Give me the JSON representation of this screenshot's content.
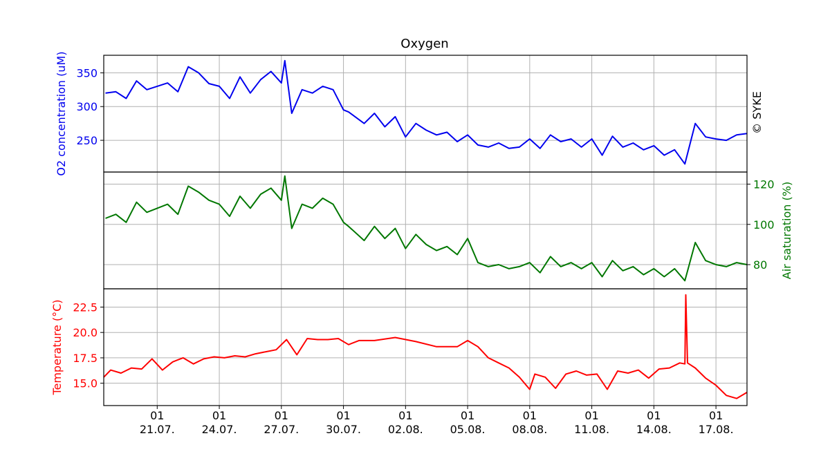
{
  "title": "Oxygen",
  "copyright": "© SYKE",
  "colors": {
    "o2": "#0000ee",
    "sat": "#007700",
    "temp": "#ff0000",
    "grid": "#b0b0b0",
    "axis": "#000000"
  },
  "chart_data": [
    {
      "type": "line",
      "panel": "o2",
      "ylabel": "O2 concentration (uM)",
      "ylim": [
        203,
        376
      ],
      "y_ticks": [
        "250",
        "300",
        "350"
      ],
      "x_tick_top": [
        "01",
        "01",
        "01",
        "01",
        "01",
        "01",
        "01",
        "01",
        "01",
        "01"
      ],
      "x_tick_bottom": [
        "21.07.",
        "24.07.",
        "27.07.",
        "30.07.",
        "02.08.",
        "05.08.",
        "08.08.",
        "11.08.",
        "14.08.",
        "17.08."
      ],
      "x_range": [
        "2025-07-18 10:00",
        "2025-08-18 12:00"
      ],
      "grid": true,
      "series": [
        {
          "x": [
            "2025-07-18 12:00",
            "2025-07-19 00:00",
            "2025-07-19 12:00",
            "2025-07-20 00:00",
            "2025-07-20 12:00",
            "2025-07-21 00:00",
            "2025-07-21 12:00",
            "2025-07-22 00:00",
            "2025-07-22 12:00",
            "2025-07-23 00:00",
            "2025-07-23 12:00",
            "2025-07-24 00:00",
            "2025-07-24 12:00",
            "2025-07-25 00:00",
            "2025-07-25 12:00",
            "2025-07-26 00:00",
            "2025-07-26 12:00",
            "2025-07-27 00:00",
            "2025-07-27 04:00",
            "2025-07-27 12:00",
            "2025-07-28 00:00",
            "2025-07-28 12:00",
            "2025-07-29 00:00",
            "2025-07-29 12:00",
            "2025-07-30 00:00",
            "2025-07-30 06:00",
            "2025-07-31 00:00",
            "2025-07-31 12:00",
            "2025-08-01 00:00",
            "2025-08-01 12:00",
            "2025-08-02 00:00",
            "2025-08-02 12:00",
            "2025-08-03 00:00",
            "2025-08-03 12:00",
            "2025-08-04 00:00",
            "2025-08-04 12:00",
            "2025-08-05 00:00",
            "2025-08-05 12:00",
            "2025-08-06 00:00",
            "2025-08-06 12:00",
            "2025-08-07 00:00",
            "2025-08-07 12:00",
            "2025-08-08 00:00",
            "2025-08-08 12:00",
            "2025-08-09 00:00",
            "2025-08-09 12:00",
            "2025-08-10 00:00",
            "2025-08-10 12:00",
            "2025-08-11 00:00",
            "2025-08-11 12:00",
            "2025-08-12 00:00",
            "2025-08-12 12:00",
            "2025-08-13 00:00",
            "2025-08-13 12:00",
            "2025-08-14 00:00",
            "2025-08-14 12:00",
            "2025-08-15 00:00",
            "2025-08-15 12:00",
            "2025-08-16 00:00",
            "2025-08-16 12:00",
            "2025-08-17 00:00",
            "2025-08-17 12:00",
            "2025-08-18 00:00",
            "2025-08-18 12:00"
          ],
          "y": [
            320,
            322,
            312,
            338,
            325,
            330,
            335,
            322,
            359,
            350,
            334,
            330,
            312,
            344,
            320,
            340,
            352,
            335,
            368,
            290,
            325,
            320,
            330,
            325,
            295,
            292,
            275,
            290,
            270,
            285,
            255,
            275,
            265,
            258,
            262,
            248,
            258,
            243,
            240,
            246,
            238,
            240,
            252,
            238,
            258,
            248,
            252,
            240,
            252,
            228,
            256,
            240,
            246,
            236,
            242,
            228,
            236,
            215,
            275,
            255,
            252,
            250,
            258,
            260
          ]
        }
      ]
    },
    {
      "type": "line",
      "panel": "saturation",
      "ylabel": "Air saturation (%)",
      "ylim": [
        68,
        126
      ],
      "y_ticks": [
        "80",
        "100",
        "120"
      ],
      "grid": true,
      "series": [
        {
          "x": [
            "2025-07-18 12:00",
            "2025-07-19 00:00",
            "2025-07-19 12:00",
            "2025-07-20 00:00",
            "2025-07-20 12:00",
            "2025-07-21 00:00",
            "2025-07-21 12:00",
            "2025-07-22 00:00",
            "2025-07-22 12:00",
            "2025-07-23 00:00",
            "2025-07-23 12:00",
            "2025-07-24 00:00",
            "2025-07-24 12:00",
            "2025-07-25 00:00",
            "2025-07-25 12:00",
            "2025-07-26 00:00",
            "2025-07-26 12:00",
            "2025-07-27 00:00",
            "2025-07-27 04:00",
            "2025-07-27 12:00",
            "2025-07-28 00:00",
            "2025-07-28 12:00",
            "2025-07-29 00:00",
            "2025-07-29 12:00",
            "2025-07-30 00:00",
            "2025-07-30 06:00",
            "2025-07-31 00:00",
            "2025-07-31 12:00",
            "2025-08-01 00:00",
            "2025-08-01 12:00",
            "2025-08-02 00:00",
            "2025-08-02 12:00",
            "2025-08-03 00:00",
            "2025-08-03 12:00",
            "2025-08-04 00:00",
            "2025-08-04 12:00",
            "2025-08-05 00:00",
            "2025-08-05 12:00",
            "2025-08-06 00:00",
            "2025-08-06 12:00",
            "2025-08-07 00:00",
            "2025-08-07 12:00",
            "2025-08-08 00:00",
            "2025-08-08 12:00",
            "2025-08-09 00:00",
            "2025-08-09 12:00",
            "2025-08-10 00:00",
            "2025-08-10 12:00",
            "2025-08-11 00:00",
            "2025-08-11 12:00",
            "2025-08-12 00:00",
            "2025-08-12 12:00",
            "2025-08-13 00:00",
            "2025-08-13 12:00",
            "2025-08-14 00:00",
            "2025-08-14 12:00",
            "2025-08-15 00:00",
            "2025-08-15 12:00",
            "2025-08-16 00:00",
            "2025-08-16 12:00",
            "2025-08-17 00:00",
            "2025-08-17 12:00",
            "2025-08-18 00:00",
            "2025-08-18 12:00"
          ],
          "y": [
            103,
            105,
            101,
            111,
            106,
            108,
            110,
            105,
            119,
            116,
            112,
            110,
            104,
            114,
            108,
            115,
            118,
            112,
            124,
            98,
            110,
            108,
            113,
            110,
            101,
            99,
            92,
            99,
            93,
            98,
            88,
            95,
            90,
            87,
            89,
            85,
            93,
            81,
            79,
            80,
            78,
            79,
            81,
            76,
            84,
            79,
            81,
            78,
            81,
            74,
            82,
            77,
            79,
            75,
            78,
            74,
            78,
            72,
            91,
            82,
            80,
            79,
            81,
            80
          ]
        }
      ]
    },
    {
      "type": "line",
      "panel": "temperature",
      "ylabel": "Temperature (°C)",
      "ylim": [
        12.8,
        24.3
      ],
      "y_ticks": [
        "15.0",
        "17.5",
        "20.0",
        "22.5"
      ],
      "grid": true,
      "series": [
        {
          "x": [
            "2025-07-18 10:00",
            "2025-07-18 18:00",
            "2025-07-19 06:00",
            "2025-07-19 18:00",
            "2025-07-20 06:00",
            "2025-07-20 18:00",
            "2025-07-21 06:00",
            "2025-07-21 18:00",
            "2025-07-22 06:00",
            "2025-07-22 18:00",
            "2025-07-23 06:00",
            "2025-07-23 18:00",
            "2025-07-24 06:00",
            "2025-07-24 18:00",
            "2025-07-25 06:00",
            "2025-07-25 18:00",
            "2025-07-26 06:00",
            "2025-07-26 18:00",
            "2025-07-27 06:00",
            "2025-07-27 18:00",
            "2025-07-28 06:00",
            "2025-07-28 18:00",
            "2025-07-29 06:00",
            "2025-07-29 18:00",
            "2025-07-30 06:00",
            "2025-07-30 18:00",
            "2025-07-31 12:00",
            "2025-08-01 12:00",
            "2025-08-02 12:00",
            "2025-08-03 12:00",
            "2025-08-04 12:00",
            "2025-08-05 00:00",
            "2025-08-05 12:00",
            "2025-08-06 00:00",
            "2025-08-06 12:00",
            "2025-08-07 00:00",
            "2025-08-07 12:00",
            "2025-08-08 00:00",
            "2025-08-08 06:00",
            "2025-08-08 18:00",
            "2025-08-09 06:00",
            "2025-08-09 18:00",
            "2025-08-10 06:00",
            "2025-08-10 18:00",
            "2025-08-11 06:00",
            "2025-08-11 18:00",
            "2025-08-12 06:00",
            "2025-08-12 18:00",
            "2025-08-13 06:00",
            "2025-08-13 18:00",
            "2025-08-14 06:00",
            "2025-08-14 18:00",
            "2025-08-15 06:00",
            "2025-08-15 12:00",
            "2025-08-15 13:00",
            "2025-08-15 15:00",
            "2025-08-16 00:00",
            "2025-08-16 12:00",
            "2025-08-17 00:00",
            "2025-08-17 12:00",
            "2025-08-18 00:00",
            "2025-08-18 12:00"
          ],
          "y": [
            15.6,
            16.3,
            16.0,
            16.5,
            16.4,
            17.4,
            16.3,
            17.1,
            17.5,
            16.9,
            17.4,
            17.6,
            17.5,
            17.7,
            17.6,
            17.9,
            18.1,
            18.3,
            19.3,
            17.8,
            19.4,
            19.3,
            19.3,
            19.4,
            18.8,
            19.2,
            19.2,
            19.5,
            19.1,
            18.6,
            18.6,
            19.2,
            18.6,
            17.5,
            17.0,
            16.5,
            15.6,
            14.4,
            15.9,
            15.6,
            14.5,
            15.9,
            16.2,
            15.8,
            15.9,
            14.4,
            16.2,
            16.0,
            16.3,
            15.5,
            16.4,
            16.5,
            17.0,
            16.9,
            23.7,
            17.0,
            16.5,
            15.5,
            14.8,
            13.8,
            13.5,
            14.1
          ]
        }
      ]
    }
  ]
}
